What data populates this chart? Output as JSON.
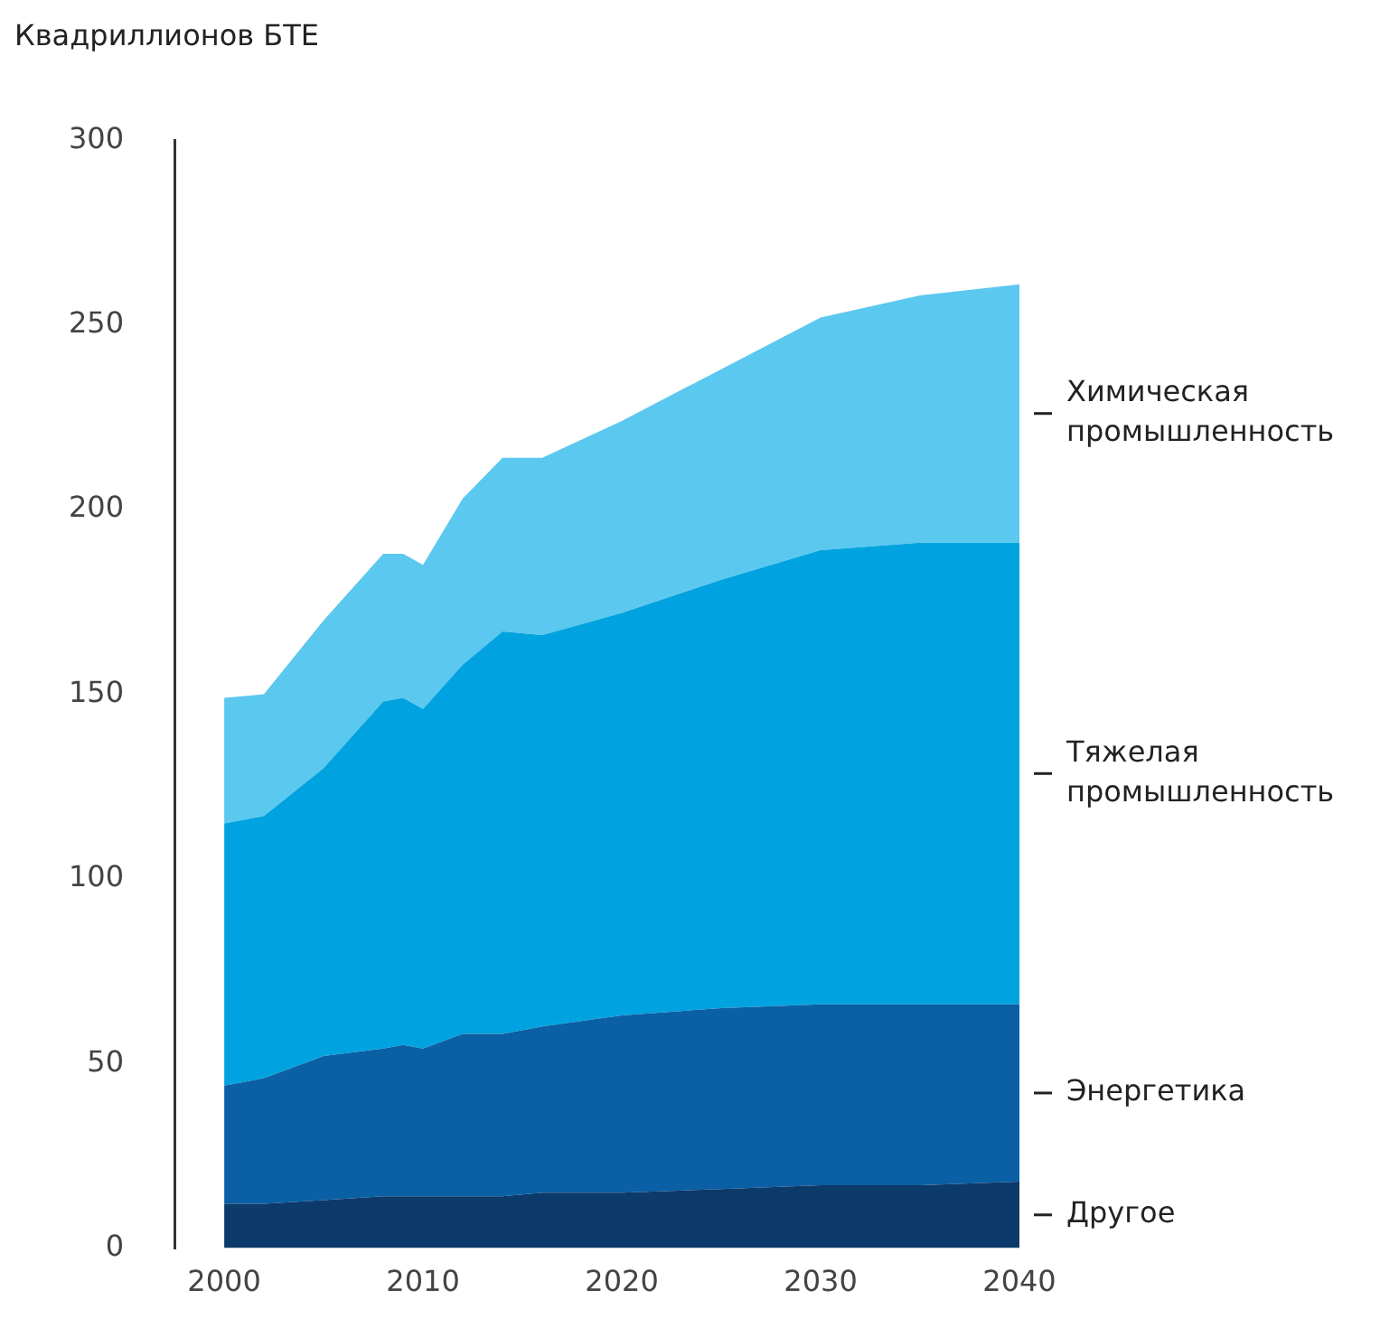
{
  "chart_data": {
    "type": "area",
    "stacked": true,
    "ylabel": "Квадриллионов БТЕ",
    "x": [
      2000,
      2002,
      2005,
      2008,
      2009,
      2010,
      2012,
      2014,
      2016,
      2020,
      2025,
      2030,
      2035,
      2040
    ],
    "series": [
      {
        "name": "Другое",
        "color": "#0b3a6b",
        "values": [
          12,
          12,
          13,
          14,
          14,
          14,
          14,
          14,
          15,
          15,
          16,
          17,
          17,
          18
        ]
      },
      {
        "name": "Энергетика",
        "color": "#0a5fa5",
        "values": [
          32,
          34,
          39,
          40,
          41,
          40,
          44,
          44,
          45,
          48,
          49,
          49,
          49,
          48
        ]
      },
      {
        "name": "Тяжелая промышленность",
        "color": "#00a3e0",
        "values": [
          71,
          71,
          78,
          94,
          94,
          92,
          100,
          109,
          106,
          109,
          116,
          123,
          125,
          125
        ]
      },
      {
        "name": "Химическая промышленность",
        "color": "#5bc8ef",
        "values": [
          34,
          33,
          40,
          40,
          39,
          39,
          45,
          47,
          48,
          52,
          57,
          63,
          67,
          70
        ]
      }
    ],
    "xlim": [
      1997.5,
      2040
    ],
    "xticks": [
      2000,
      2010,
      2020,
      2030,
      2040
    ],
    "ylim": [
      0,
      300
    ],
    "yticks": [
      0,
      50,
      100,
      150,
      200,
      250,
      300
    ],
    "grid": false,
    "legend": false
  }
}
